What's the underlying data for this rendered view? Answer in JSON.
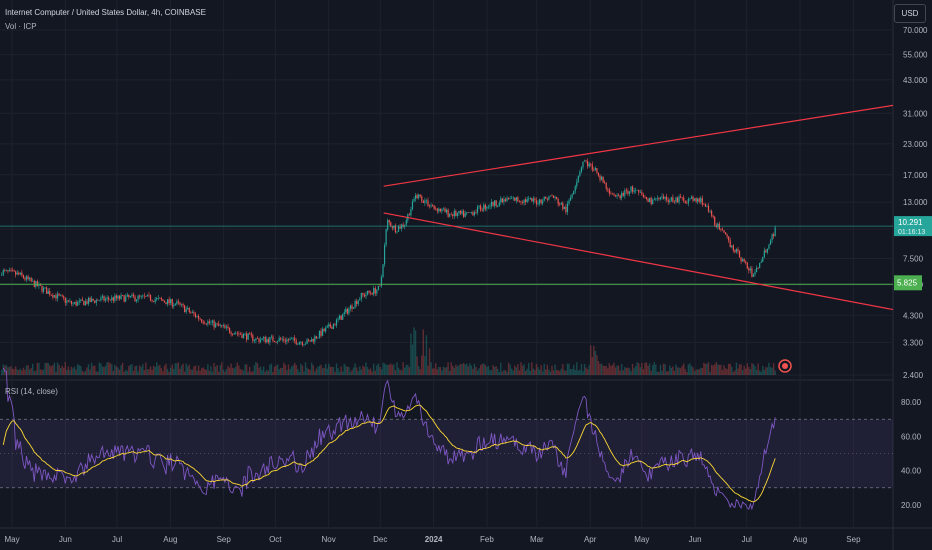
{
  "header": {
    "symbol_title": "Internet Computer / United States Dollar, 4h, COINBASE",
    "volume_label": "Vol · ICP",
    "rsi_label": "RSI (14, close)",
    "currency": "USD"
  },
  "colors": {
    "background": "#131722",
    "up": "#26a69a",
    "down": "#ef5350",
    "trendline": "#f23645",
    "hline": "#4caf50",
    "price_line": "#26a69a",
    "rsi": "#7e57c2",
    "rsi_ma": "#fdd835",
    "rsi_band": "#7e57c2"
  },
  "chart_data": {
    "type": "candlestick",
    "price_axis": {
      "scale": "log",
      "ticks": [
        "70.000",
        "55.000",
        "43.000",
        "31.000",
        "23.000",
        "17.000",
        "13.000",
        "10.000",
        "7.500",
        "5.800",
        "4.300",
        "3.300",
        "2.400"
      ],
      "range": [
        2.4,
        70
      ]
    },
    "time_axis": {
      "ticks": [
        "May",
        "Jun",
        "Jul",
        "Aug",
        "Sep",
        "Oct",
        "Nov",
        "Dec",
        "2024",
        "Feb",
        "Mar",
        "Apr",
        "May",
        "Jun",
        "Jul",
        "Aug",
        "Sep"
      ]
    },
    "price_series": {
      "x": [
        "2023-04-25",
        "2023-05-05",
        "2023-05-20",
        "2023-06-05",
        "2023-06-20",
        "2023-07-05",
        "2023-07-20",
        "2023-08-05",
        "2023-08-20",
        "2023-09-05",
        "2023-09-20",
        "2023-10-05",
        "2023-10-20",
        "2023-11-05",
        "2023-11-20",
        "2023-12-01",
        "2023-12-05",
        "2023-12-10",
        "2023-12-15",
        "2023-12-22",
        "2023-12-31",
        "2024-01-10",
        "2024-01-20",
        "2024-02-01",
        "2024-02-15",
        "2024-03-01",
        "2024-03-10",
        "2024-03-18",
        "2024-03-28",
        "2024-04-05",
        "2024-04-15",
        "2024-04-25",
        "2024-05-05",
        "2024-05-20",
        "2024-06-05",
        "2024-06-15",
        "2024-06-25",
        "2024-07-05",
        "2024-07-10",
        "2024-07-18"
      ],
      "close": [
        6.6,
        6.4,
        5.5,
        4.8,
        5.0,
        5.1,
        5.1,
        4.8,
        4.1,
        3.7,
        3.4,
        3.4,
        3.3,
        4.0,
        5.2,
        5.6,
        10.8,
        10.0,
        10.5,
        14.0,
        12.5,
        11.6,
        11.5,
        12.6,
        13.4,
        13.1,
        13.8,
        12.0,
        19.6,
        17.5,
        13.4,
        14.8,
        13.2,
        13.4,
        13.2,
        10.0,
        8.0,
        6.3,
        7.6,
        10.1
      ]
    },
    "rsi_axis": {
      "ticks": [
        "80.00",
        "60.00",
        "40.00",
        "20.00"
      ],
      "range": [
        10,
        90
      ],
      "overbought": 70,
      "oversold": 30
    },
    "annotations": {
      "last_price": "10.291",
      "last_price_countdown": "01:16:13",
      "horizontal_level": "5.825",
      "horizontal_level_sub": "5.825"
    }
  }
}
